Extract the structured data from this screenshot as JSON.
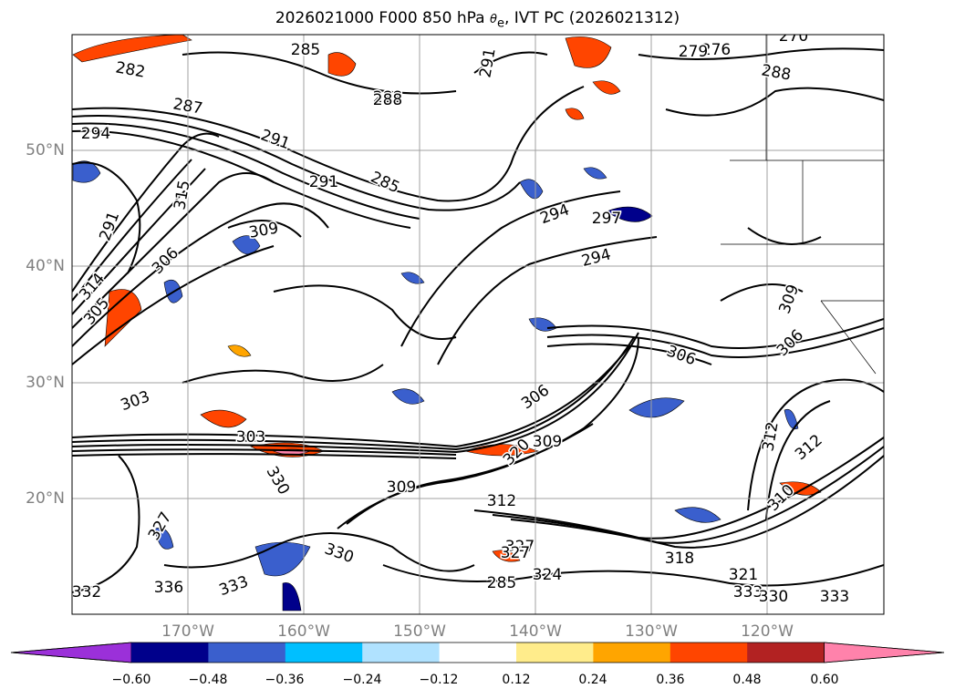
{
  "title": {
    "prefix": "2026021000 F000 850 hPa ",
    "theta": "θ",
    "sub": "e",
    "suffix": ", IVT PC (2026021312)"
  },
  "lat_labels": [
    "50°N",
    "40°N",
    "30°N",
    "20°N"
  ],
  "lon_labels": [
    "170°W",
    "160°W",
    "150°W",
    "140°W",
    "130°W",
    "120°W"
  ],
  "colorbar": {
    "colors": [
      "#9b30d9",
      "#00008b",
      "#3a5fcd",
      "#00bfff",
      "#b0e2ff",
      "#ffffff",
      "#ffec8b",
      "#ffa500",
      "#ff4500",
      "#b22222",
      "#ff82ab"
    ],
    "ticks": [
      "−0.60",
      "−0.48",
      "−0.36",
      "−0.24",
      "−0.12",
      "0.12",
      "0.24",
      "0.36",
      "0.48",
      "0.60"
    ]
  },
  "contour_labels": [
    "282",
    "285",
    "287",
    "294",
    "291",
    "288",
    "285",
    "291",
    "315",
    "306",
    "314",
    "309",
    "305",
    "303",
    "303",
    "330",
    "327",
    "336",
    "333",
    "332",
    "330",
    "324",
    "327",
    "321",
    "333",
    "330",
    "333",
    "318",
    "312",
    "310",
    "306",
    "294",
    "294",
    "297",
    "306",
    "309",
    "291",
    "288",
    "291",
    "270",
    "276",
    "279",
    "288",
    "285",
    "312",
    "320",
    "306",
    "309",
    "312",
    "327",
    "309"
  ]
}
